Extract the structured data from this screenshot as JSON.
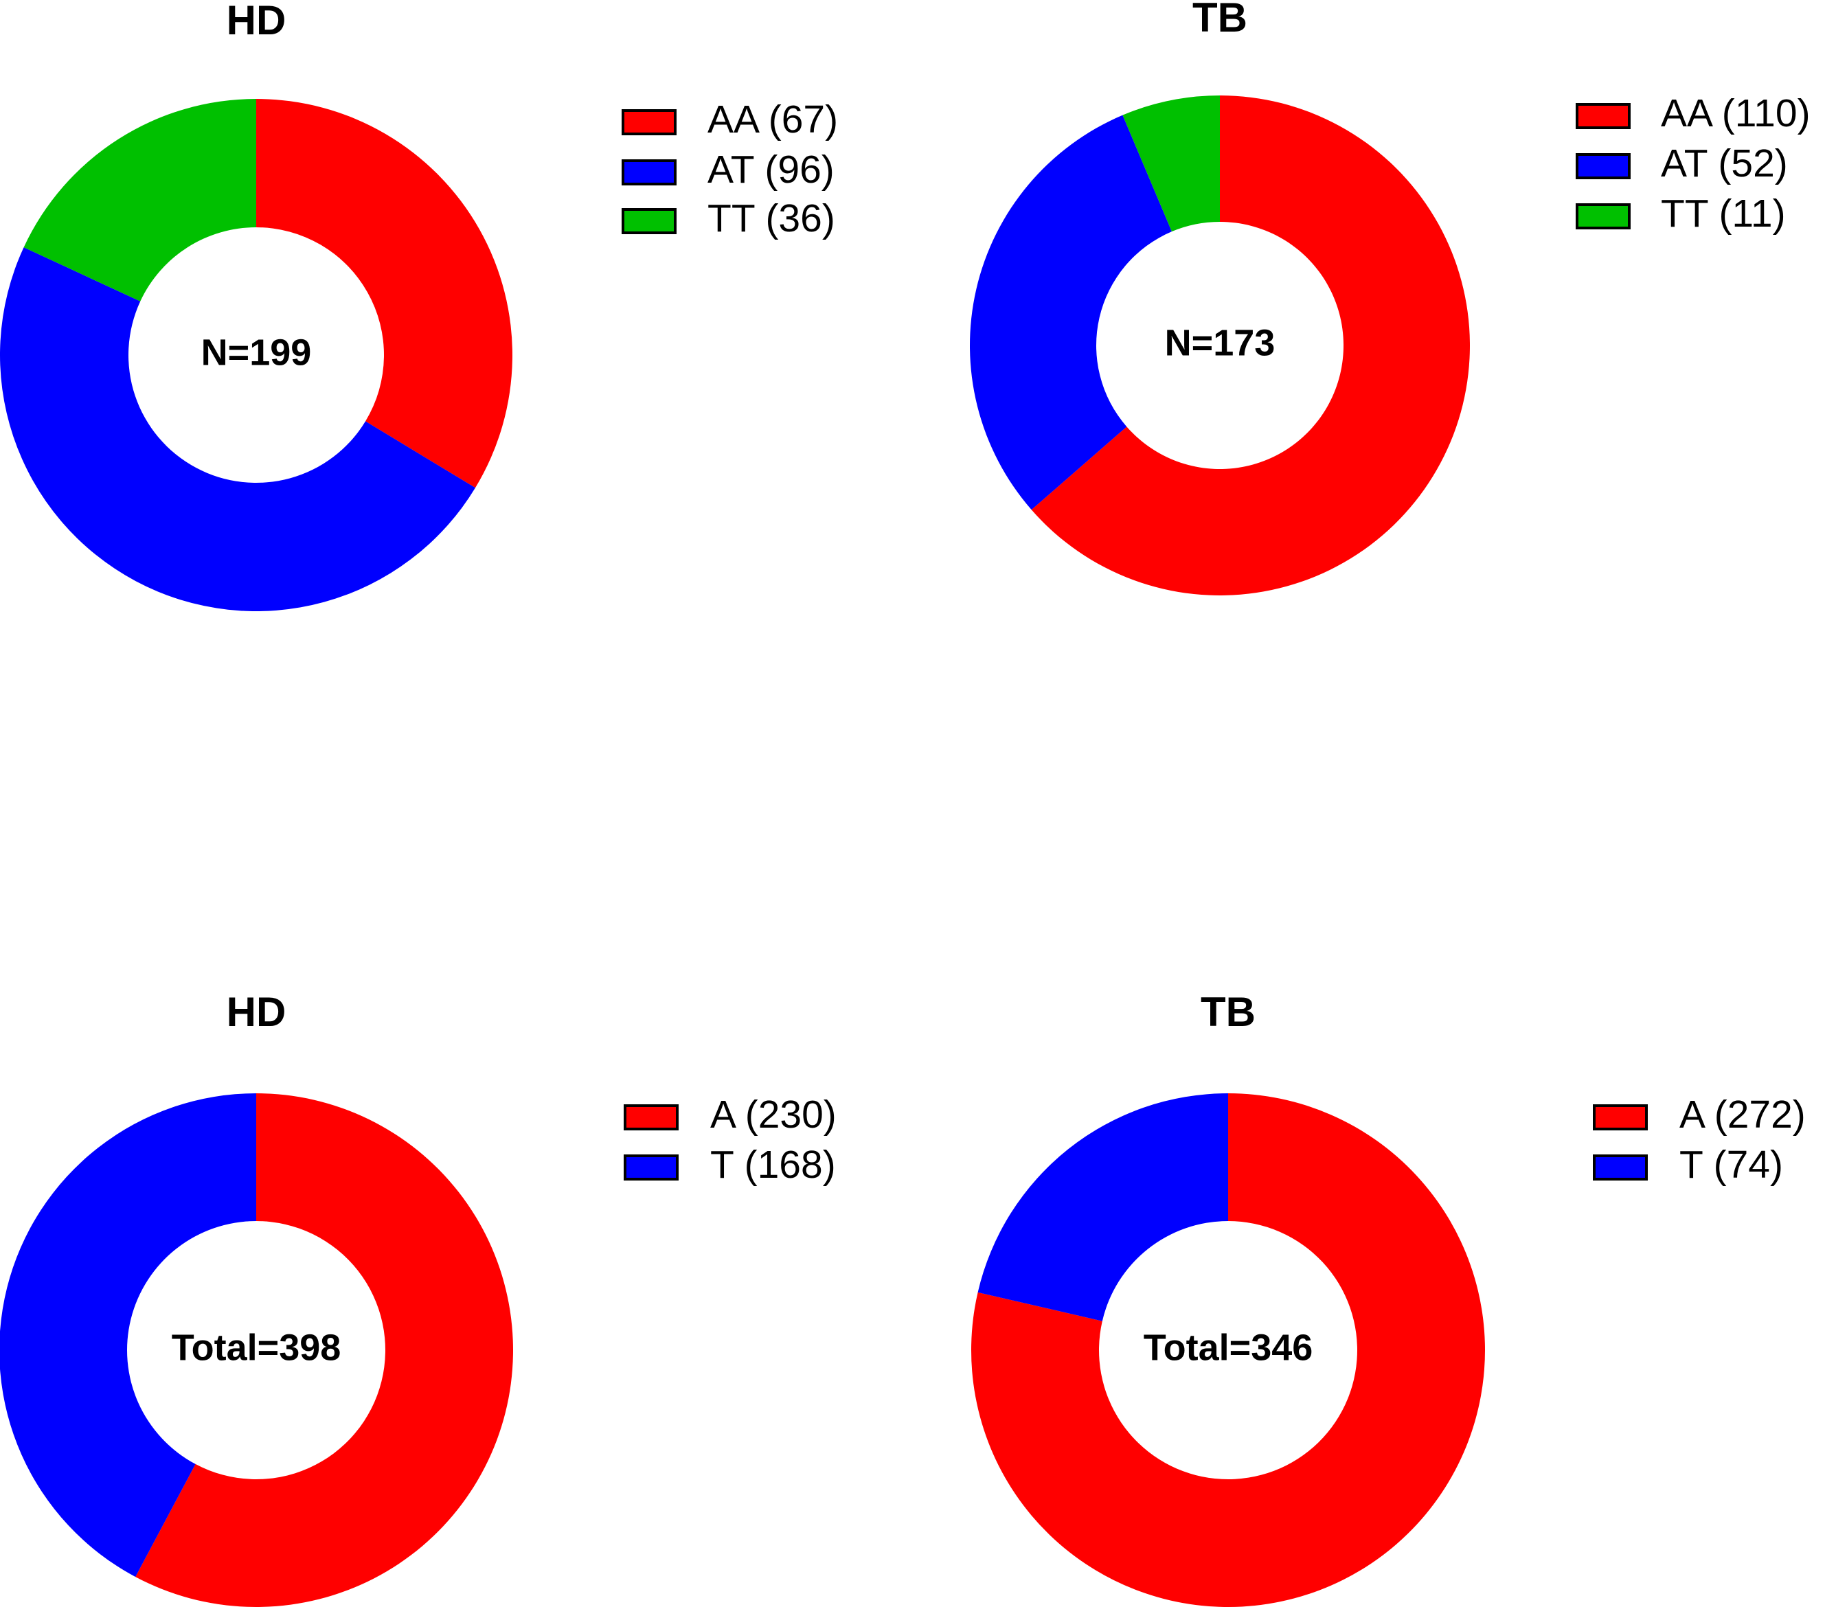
{
  "chart_data": [
    {
      "type": "donut",
      "title": "HD",
      "center_label": "N=199",
      "labels": [
        "AA (67)",
        "AT (96)",
        "TT (36)"
      ],
      "values": [
        67,
        96,
        36
      ],
      "colors": [
        "#ff0000",
        "#0000ff",
        "#00c000"
      ]
    },
    {
      "type": "donut",
      "title": "TB",
      "center_label": "N=173",
      "labels": [
        "AA (110)",
        "AT (52)",
        "TT (11)"
      ],
      "values": [
        110,
        52,
        11
      ],
      "colors": [
        "#ff0000",
        "#0000ff",
        "#00c000"
      ]
    },
    {
      "type": "donut",
      "title": "HD",
      "center_label": "Total=398",
      "labels": [
        "A (230)",
        "T (168)"
      ],
      "values": [
        230,
        168
      ],
      "colors": [
        "#ff0000",
        "#0000ff"
      ]
    },
    {
      "type": "donut",
      "title": "TB",
      "center_label": "Total=346",
      "labels": [
        "A (272)",
        "T (74)"
      ],
      "values": [
        272,
        74
      ],
      "colors": [
        "#ff0000",
        "#0000ff"
      ]
    }
  ]
}
